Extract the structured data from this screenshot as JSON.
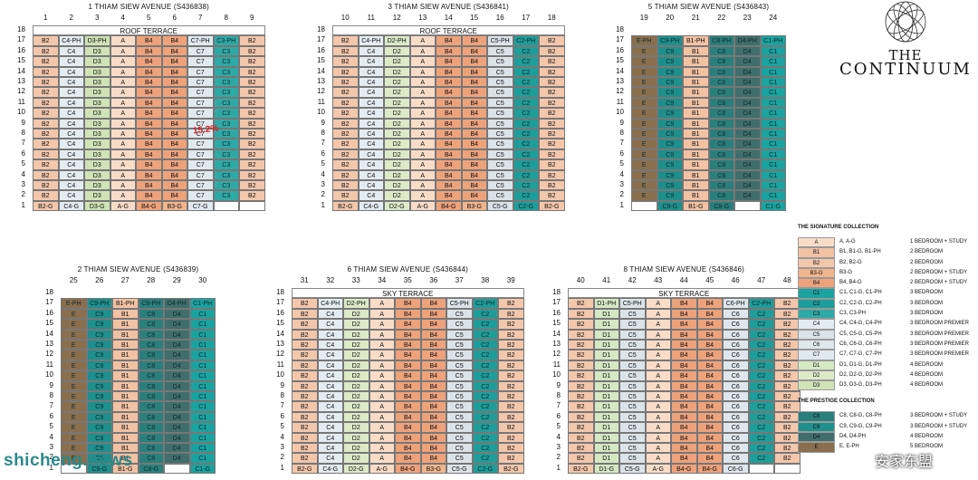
{
  "brand": {
    "line1": "THE",
    "line2": "CONTINUUM"
  },
  "colors": {
    "A": "#f9dcc8",
    "B1": "#f2c2a4",
    "B2": "#f3c7ac",
    "B3": "#f1b58e",
    "B4": "#eea27c",
    "C1": "#1aa3a0",
    "C2": "#1e9d9a",
    "C3": "#2fa9a6",
    "C4": "#e4ecf3",
    "C5": "#dbe3ea",
    "C6": "#dee6ee",
    "C7": "#e0e8f0",
    "C8": "#2a7f7c",
    "C9": "#1e8f8c",
    "D1": "#d4e8c4",
    "D2": "#dceac8",
    "D3": "#cfe3b6",
    "D4": "#3f6e6c",
    "E": "#8a6f4e",
    "X": "#ffffff"
  },
  "annotation": "15.2%",
  "watermark": "shicheng.news",
  "watermark2": "安家东盟",
  "blocks": [
    {
      "title": "1 THIAM SIEW AVENUE (S436838)",
      "cols": [
        "1",
        "2",
        "3",
        "4",
        "5",
        "6",
        "7",
        "8",
        "9"
      ],
      "floors": [
        "18",
        "17",
        "16",
        "15",
        "14",
        "13",
        "12",
        "11",
        "10",
        "9",
        "8",
        "7",
        "6",
        "5",
        "4",
        "3",
        "2",
        "1"
      ],
      "terrace": "ROOF TERRACE",
      "top": [
        "B2",
        "C4-PH",
        "D3-PH",
        "A",
        "B4",
        "B4",
        "C7-PH",
        "C3-PH",
        "B2"
      ],
      "mid": [
        "B2",
        "C4",
        "D3",
        "A",
        "B4",
        "B4",
        "C7",
        "C3",
        "B2"
      ],
      "bottom": [
        "B2-G",
        "C4-G",
        "D3-G",
        "A-G",
        "B4-G",
        "B3-G",
        "C7-G",
        "",
        ""
      ]
    },
    {
      "title": "3 THIAM SIEW AVENUE (S436841)",
      "cols": [
        "10",
        "11",
        "12",
        "13",
        "14",
        "15",
        "16",
        "17",
        "18"
      ],
      "floors": [
        "18",
        "17",
        "16",
        "15",
        "14",
        "13",
        "12",
        "11",
        "10",
        "9",
        "8",
        "7",
        "6",
        "5",
        "4",
        "3",
        "2",
        "1"
      ],
      "terrace": "ROOF TERRACE",
      "top": [
        "B2",
        "C4-PH",
        "D2-PH",
        "A",
        "B4",
        "B4",
        "C5-PH",
        "C2-PH",
        "B2"
      ],
      "mid": [
        "B2",
        "C4",
        "D2",
        "A",
        "B4",
        "B4",
        "C5",
        "C2",
        "B2"
      ],
      "bottom": [
        "B2-G",
        "C4-G",
        "D2-G",
        "A-G",
        "B4-G",
        "B3-G",
        "C5-G",
        "C2-G",
        "B2-G"
      ]
    },
    {
      "title": "5 THIAM SIEW AVENUE (S436843)",
      "cols": [
        "19",
        "20",
        "21",
        "22",
        "23",
        "24"
      ],
      "floors": [
        "18",
        "17",
        "16",
        "15",
        "14",
        "13",
        "12",
        "11",
        "10",
        "9",
        "8",
        "7",
        "6",
        "5",
        "4",
        "3",
        "2",
        "1"
      ],
      "terrace": "",
      "top": [
        "E-PH",
        "C9-PH",
        "B1-PH",
        "C8-PH",
        "D4-PH",
        "C1-PH"
      ],
      "mid": [
        "E",
        "C9",
        "B1",
        "C8",
        "D4",
        "C1"
      ],
      "bottom": [
        "",
        "C9-G",
        "B1-G",
        "C8-G",
        "",
        "C1-G"
      ]
    },
    {
      "title": "2 THIAM SIEW AVENUE (S436839)",
      "cols": [
        "25",
        "26",
        "27",
        "28",
        "29",
        "30"
      ],
      "floors": [
        "18",
        "17",
        "16",
        "15",
        "14",
        "13",
        "12",
        "11",
        "10",
        "9",
        "8",
        "7",
        "6",
        "5",
        "4",
        "3",
        "2",
        "1"
      ],
      "terrace": "",
      "top": [
        "E-PH",
        "C9-PH",
        "B1-PH",
        "C8-PH",
        "D4-PH",
        "C1-PH"
      ],
      "mid": [
        "E",
        "C9",
        "B1",
        "C8",
        "D4",
        "C1"
      ],
      "bottom": [
        "",
        "C9-G",
        "B1-G",
        "C8-G",
        "",
        "C1-G"
      ]
    },
    {
      "title": "6 THIAM SIEW AVENUE (S436844)",
      "cols": [
        "31",
        "32",
        "33",
        "34",
        "35",
        "36",
        "37",
        "38",
        "39"
      ],
      "floors": [
        "18",
        "17",
        "16",
        "15",
        "14",
        "13",
        "12",
        "11",
        "10",
        "9",
        "8",
        "7",
        "6",
        "5",
        "4",
        "3",
        "2",
        "1"
      ],
      "terrace": "SKY TERRACE",
      "top": [
        "B2",
        "C4-PH",
        "D2-PH",
        "A",
        "B4",
        "B4",
        "C5-PH",
        "C2-PH",
        "B2"
      ],
      "mid": [
        "B2",
        "C4",
        "D2",
        "A",
        "B4",
        "B4",
        "C5",
        "C2",
        "B2"
      ],
      "bottom": [
        "B2-G",
        "C4-G",
        "D2-G",
        "A-G",
        "B4-G",
        "B3-G",
        "C5-G",
        "C2-G",
        "B2-G"
      ]
    },
    {
      "title": "8 THIAM SIEW AVENUE (S436846)",
      "cols": [
        "40",
        "41",
        "42",
        "43",
        "44",
        "45",
        "46",
        "47",
        "48"
      ],
      "floors": [
        "18",
        "17",
        "16",
        "15",
        "14",
        "13",
        "12",
        "11",
        "10",
        "9",
        "8",
        "7",
        "6",
        "5",
        "4",
        "3",
        "2",
        "1"
      ],
      "terrace": "SKY TERRACE",
      "top": [
        "B2",
        "D1-PH",
        "C5-PH",
        "A",
        "B4",
        "B4",
        "C6-PH",
        "C2-PH",
        "B2"
      ],
      "mid": [
        "B2",
        "D1",
        "C5",
        "A",
        "B4",
        "B4",
        "C6",
        "C2",
        "B2"
      ],
      "bottom": [
        "B2-G",
        "D1-G",
        "C5-G",
        "A-G",
        "B4-G",
        "B4-G",
        "C6-G",
        "",
        ""
      ]
    }
  ],
  "legend": {
    "signature_title": "THE SIGNATURE COLLECTION",
    "signature": [
      {
        "code": "A",
        "codes": "A, A-G",
        "type": "1 BEDROOM + STUDY"
      },
      {
        "code": "B1",
        "codes": "B1, B1-G, B1-PH",
        "type": "2 BEDROOM"
      },
      {
        "code": "B2",
        "codes": "B2, B2-G",
        "type": "2 BEDROOM"
      },
      {
        "code": "B3-G",
        "codes": "B3-G",
        "type": "2 BEDROOM + STUDY"
      },
      {
        "code": "B4",
        "codes": "B4, B4-G",
        "type": "2 BEDROOM + STUDY"
      },
      {
        "code": "C1",
        "codes": "C1, C1-G, C1-PH",
        "type": "3 BEDROOM"
      },
      {
        "code": "C2",
        "codes": "C2, C2-G, C2-PH",
        "type": "3 BEDROOM"
      },
      {
        "code": "C3",
        "codes": "C3, C3-PH",
        "type": "3 BEDROOM"
      },
      {
        "code": "C4",
        "codes": "C4, C4-G, C4-PH",
        "type": "3 BEDROOM PREMIER"
      },
      {
        "code": "C5",
        "codes": "C5, C5-G, C5-PH",
        "type": "3 BEDROOM PREMIER"
      },
      {
        "code": "C6",
        "codes": "C6, C6-G, C6-PH",
        "type": "3 BEDROOM PREMIER"
      },
      {
        "code": "C7",
        "codes": "C7, C7-G, C7-PH",
        "type": "3 BEDROOM PREMIER"
      },
      {
        "code": "D1",
        "codes": "D1, D1-G, D1-PH",
        "type": "4 BEDROOM"
      },
      {
        "code": "D2",
        "codes": "D2, D2-G, D2-PH",
        "type": "4 BEDROOM"
      },
      {
        "code": "D3",
        "codes": "D3, D3-G, D3-PH",
        "type": "4 BEDROOM"
      }
    ],
    "prestige_title": "THE PRESTIGE COLLECTION",
    "prestige": [
      {
        "code": "C8",
        "codes": "C8, C8-G, C8-PH",
        "type": "3 BEDROOM + STUDY"
      },
      {
        "code": "C9",
        "codes": "C9, C9-G, C9-PH",
        "type": "3 BEDROOM + STUDY"
      },
      {
        "code": "D4",
        "codes": "D4, D4-PH",
        "type": "4 BEDROOM"
      },
      {
        "code": "E",
        "codes": "E, E-PH",
        "type": "5 BEDROOM"
      }
    ]
  }
}
